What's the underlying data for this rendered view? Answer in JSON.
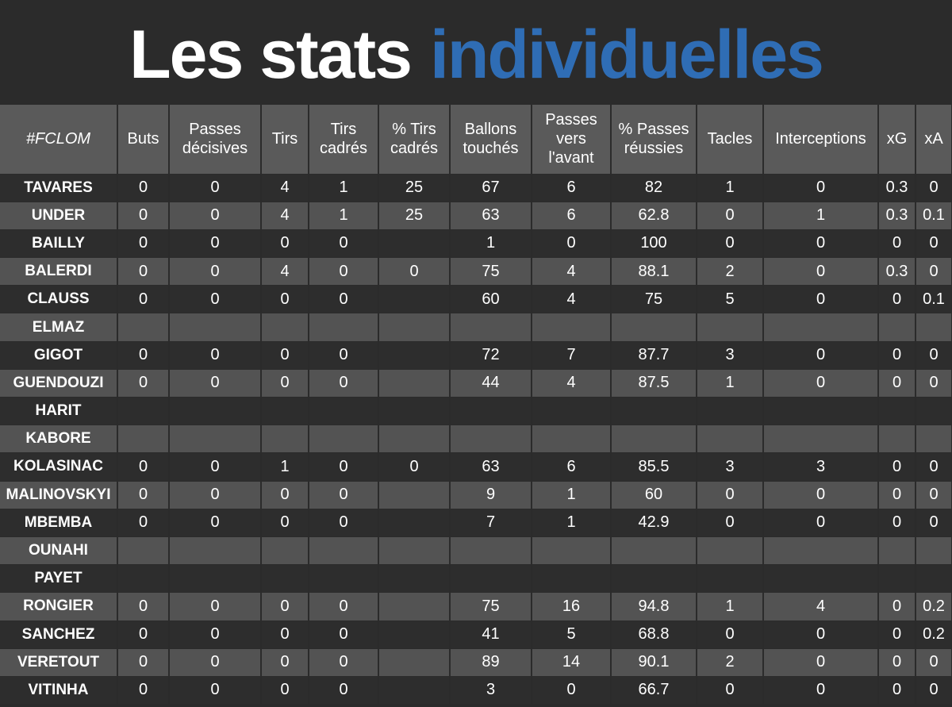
{
  "title": {
    "part1": "Les stats",
    "part2": "individuelles"
  },
  "colors": {
    "background": "#2b2b2b",
    "header_bg": "#5a5a5a",
    "row_light": "#535353",
    "row_dark": "#2d2d2d",
    "accent": "#2f6db5"
  },
  "table": {
    "headers": [
      "#FCLOM",
      "Buts",
      "Passes décisives",
      "Tirs",
      "Tirs cadrés",
      "% Tirs cadrés",
      "Ballons touchés",
      "Passes vers l'avant",
      "% Passes réussies",
      "Tacles",
      "Interceptions",
      "xG",
      "xA"
    ],
    "rows": [
      [
        "TAVARES",
        "0",
        "0",
        "4",
        "1",
        "25",
        "67",
        "6",
        "82",
        "1",
        "0",
        "0.3",
        "0"
      ],
      [
        "UNDER",
        "0",
        "0",
        "4",
        "1",
        "25",
        "63",
        "6",
        "62.8",
        "0",
        "1",
        "0.3",
        "0.1"
      ],
      [
        "BAILLY",
        "0",
        "0",
        "0",
        "0",
        "",
        "1",
        "0",
        "100",
        "0",
        "0",
        "0",
        "0"
      ],
      [
        "BALERDI",
        "0",
        "0",
        "4",
        "0",
        "0",
        "75",
        "4",
        "88.1",
        "2",
        "0",
        "0.3",
        "0"
      ],
      [
        "CLAUSS",
        "0",
        "0",
        "0",
        "0",
        "",
        "60",
        "4",
        "75",
        "5",
        "0",
        "0",
        "0.1"
      ],
      [
        "ELMAZ",
        "",
        "",
        "",
        "",
        "",
        "",
        "",
        "",
        "",
        "",
        "",
        ""
      ],
      [
        "GIGOT",
        "0",
        "0",
        "0",
        "0",
        "",
        "72",
        "7",
        "87.7",
        "3",
        "0",
        "0",
        "0"
      ],
      [
        "GUENDOUZI",
        "0",
        "0",
        "0",
        "0",
        "",
        "44",
        "4",
        "87.5",
        "1",
        "0",
        "0",
        "0"
      ],
      [
        "HARIT",
        "",
        "",
        "",
        "",
        "",
        "",
        "",
        "",
        "",
        "",
        "",
        ""
      ],
      [
        "KABORE",
        "",
        "",
        "",
        "",
        "",
        "",
        "",
        "",
        "",
        "",
        "",
        ""
      ],
      [
        "KOLASINAC",
        "0",
        "0",
        "1",
        "0",
        "0",
        "63",
        "6",
        "85.5",
        "3",
        "3",
        "0",
        "0"
      ],
      [
        "MALINOVSKYI",
        "0",
        "0",
        "0",
        "0",
        "",
        "9",
        "1",
        "60",
        "0",
        "0",
        "0",
        "0"
      ],
      [
        "MBEMBA",
        "0",
        "0",
        "0",
        "0",
        "",
        "7",
        "1",
        "42.9",
        "0",
        "0",
        "0",
        "0"
      ],
      [
        "OUNAHI",
        "",
        "",
        "",
        "",
        "",
        "",
        "",
        "",
        "",
        "",
        "",
        ""
      ],
      [
        "PAYET",
        "",
        "",
        "",
        "",
        "",
        "",
        "",
        "",
        "",
        "",
        "",
        ""
      ],
      [
        "RONGIER",
        "0",
        "0",
        "0",
        "0",
        "",
        "75",
        "16",
        "94.8",
        "1",
        "4",
        "0",
        "0.2"
      ],
      [
        "SANCHEZ",
        "0",
        "0",
        "0",
        "0",
        "",
        "41",
        "5",
        "68.8",
        "0",
        "0",
        "0",
        "0.2"
      ],
      [
        "VERETOUT",
        "0",
        "0",
        "0",
        "0",
        "",
        "89",
        "14",
        "90.1",
        "2",
        "0",
        "0",
        "0"
      ],
      [
        "VITINHA",
        "0",
        "0",
        "0",
        "0",
        "",
        "3",
        "0",
        "66.7",
        "0",
        "0",
        "0",
        "0"
      ]
    ]
  }
}
